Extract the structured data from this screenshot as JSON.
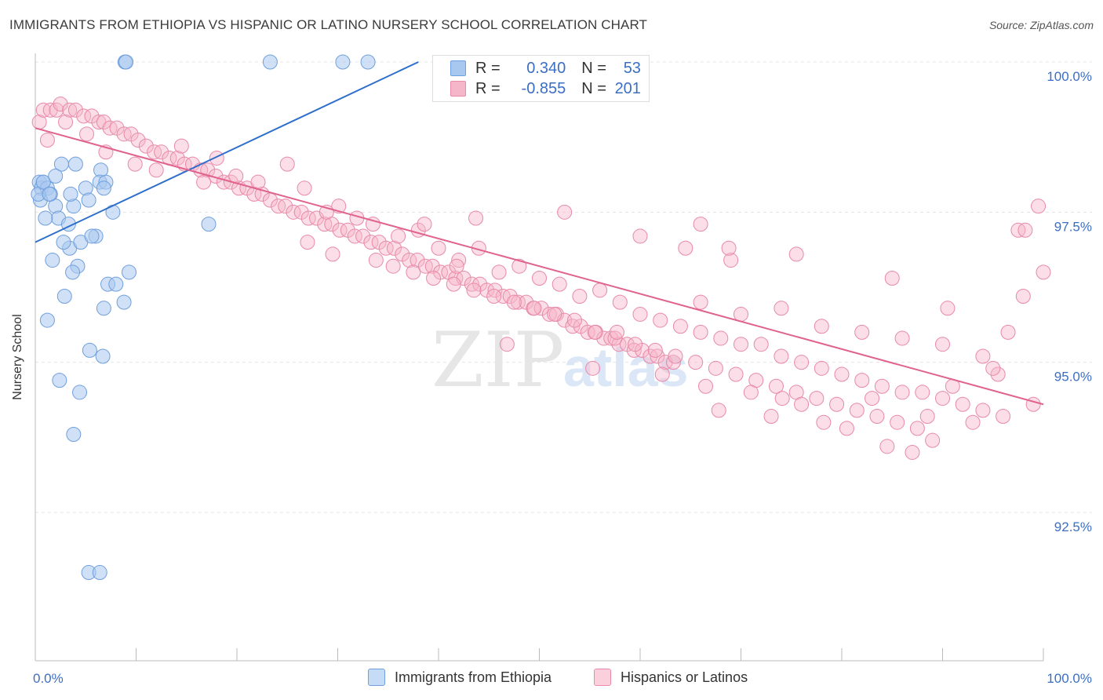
{
  "title": "IMMIGRANTS FROM ETHIOPIA VS HISPANIC OR LATINO NURSERY SCHOOL CORRELATION CHART",
  "source": "Source: ZipAtlas.com",
  "watermark": {
    "zip": "ZIP",
    "atlas": "atlas"
  },
  "legend_top": {
    "rows": [
      {
        "r_label": "R =",
        "r_value": "0.340",
        "n_label": "N =",
        "n_value": "53"
      },
      {
        "r_label": "R =",
        "r_value": "-0.855",
        "n_label": "N =",
        "n_value": "201"
      }
    ]
  },
  "colors": {
    "blue_fill": "#a9c8f0",
    "blue_stroke": "#6f9fdc",
    "blue_line": "#2f6fcc",
    "pink_fill": "#f6b6c9",
    "pink_stroke": "#e889a8",
    "pink_line": "#e0628e",
    "axis_text": "#3b6fc4",
    "grid": "#e4e4e4"
  },
  "chart_data": {
    "type": "scatter",
    "title": "IMMIGRANTS FROM ETHIOPIA VS HISPANIC OR LATINO NURSERY SCHOOL CORRELATION CHART",
    "xlabel": "",
    "ylabel": "Nursery School",
    "xlim": [
      0,
      100
    ],
    "ylim": [
      90.0,
      100.5
    ],
    "x_tick_labels": [
      "0.0%",
      "100.0%"
    ],
    "y_ticks": [
      92.5,
      95.0,
      97.5,
      100.0
    ],
    "y_tick_labels": [
      "92.5%",
      "95.0%",
      "97.5%",
      "100.0%"
    ],
    "grid": true,
    "legend": "top-center",
    "series": [
      {
        "name": "Immigrants from Ethiopia",
        "color": "#a9c8f0",
        "trend": {
          "x": [
            0,
            38
          ],
          "y": [
            97.0,
            100.0
          ]
        },
        "points": [
          [
            8.9,
            100.0
          ],
          [
            9.0,
            100.0
          ],
          [
            23.3,
            100.0
          ],
          [
            30.5,
            100.0
          ],
          [
            33.0,
            100.0
          ],
          [
            2.6,
            98.3
          ],
          [
            4.0,
            98.3
          ],
          [
            6.5,
            98.2
          ],
          [
            0.4,
            98.0
          ],
          [
            0.6,
            97.9
          ],
          [
            0.8,
            98.0
          ],
          [
            6.4,
            98.0
          ],
          [
            7.0,
            98.0
          ],
          [
            1.2,
            97.9
          ],
          [
            1.5,
            97.8
          ],
          [
            3.8,
            97.6
          ],
          [
            5.0,
            97.9
          ],
          [
            5.3,
            97.7
          ],
          [
            6.8,
            97.9
          ],
          [
            2.0,
            97.6
          ],
          [
            0.5,
            97.7
          ],
          [
            2.3,
            97.4
          ],
          [
            1.0,
            97.4
          ],
          [
            3.3,
            97.3
          ],
          [
            7.7,
            97.5
          ],
          [
            0.3,
            97.8
          ],
          [
            1.7,
            96.7
          ],
          [
            3.4,
            96.9
          ],
          [
            4.5,
            97.0
          ],
          [
            6.0,
            97.1
          ],
          [
            17.2,
            97.3
          ],
          [
            2.8,
            97.0
          ],
          [
            4.2,
            96.6
          ],
          [
            7.2,
            96.3
          ],
          [
            2.9,
            96.1
          ],
          [
            1.2,
            95.7
          ],
          [
            3.7,
            96.5
          ],
          [
            8.8,
            96.0
          ],
          [
            6.8,
            95.9
          ],
          [
            9.3,
            96.5
          ],
          [
            8.0,
            96.3
          ],
          [
            5.4,
            95.2
          ],
          [
            6.7,
            95.1
          ],
          [
            2.4,
            94.7
          ],
          [
            4.4,
            94.5
          ],
          [
            3.8,
            93.8
          ],
          [
            5.3,
            91.5
          ],
          [
            6.4,
            91.5
          ],
          [
            0.8,
            98.0
          ],
          [
            5.6,
            97.1
          ],
          [
            2.0,
            98.1
          ],
          [
            3.5,
            97.8
          ],
          [
            1.4,
            97.8
          ]
        ]
      },
      {
        "name": "Hispanics or Latinos",
        "color": "#f6b6c9",
        "trend": {
          "x": [
            0,
            100
          ],
          "y": [
            98.9,
            94.3
          ]
        },
        "points": [
          [
            0.4,
            99.0
          ],
          [
            0.8,
            99.2
          ],
          [
            1.5,
            99.2
          ],
          [
            2.1,
            99.2
          ],
          [
            2.5,
            99.3
          ],
          [
            3.4,
            99.2
          ],
          [
            4.0,
            99.2
          ],
          [
            4.8,
            99.1
          ],
          [
            5.6,
            99.1
          ],
          [
            6.3,
            99.0
          ],
          [
            6.8,
            99.0
          ],
          [
            7.4,
            98.9
          ],
          [
            8.1,
            98.9
          ],
          [
            8.8,
            98.8
          ],
          [
            9.5,
            98.8
          ],
          [
            10.2,
            98.7
          ],
          [
            11.0,
            98.6
          ],
          [
            11.8,
            98.5
          ],
          [
            12.5,
            98.5
          ],
          [
            13.3,
            98.4
          ],
          [
            14.1,
            98.4
          ],
          [
            14.8,
            98.3
          ],
          [
            15.6,
            98.3
          ],
          [
            16.4,
            98.2
          ],
          [
            17.1,
            98.2
          ],
          [
            17.9,
            98.1
          ],
          [
            18.7,
            98.0
          ],
          [
            19.4,
            98.0
          ],
          [
            20.2,
            97.9
          ],
          [
            21.0,
            97.9
          ],
          [
            21.7,
            97.8
          ],
          [
            22.5,
            97.8
          ],
          [
            23.3,
            97.7
          ],
          [
            24.1,
            97.6
          ],
          [
            24.8,
            97.6
          ],
          [
            25.6,
            97.5
          ],
          [
            26.4,
            97.5
          ],
          [
            27.1,
            97.4
          ],
          [
            27.9,
            97.4
          ],
          [
            28.7,
            97.3
          ],
          [
            29.4,
            97.3
          ],
          [
            30.2,
            97.2
          ],
          [
            31.0,
            97.2
          ],
          [
            31.7,
            97.1
          ],
          [
            32.5,
            97.1
          ],
          [
            33.3,
            97.0
          ],
          [
            34.1,
            97.0
          ],
          [
            34.8,
            96.9
          ],
          [
            35.6,
            96.9
          ],
          [
            36.4,
            96.8
          ],
          [
            37.1,
            96.7
          ],
          [
            37.9,
            96.7
          ],
          [
            38.7,
            96.6
          ],
          [
            39.4,
            96.6
          ],
          [
            40.2,
            96.5
          ],
          [
            41.0,
            96.5
          ],
          [
            41.7,
            96.4
          ],
          [
            42.5,
            96.4
          ],
          [
            43.3,
            96.3
          ],
          [
            44.1,
            96.3
          ],
          [
            44.8,
            96.2
          ],
          [
            45.6,
            96.2
          ],
          [
            46.4,
            96.1
          ],
          [
            47.1,
            96.1
          ],
          [
            47.9,
            96.0
          ],
          [
            48.7,
            96.0
          ],
          [
            49.4,
            95.9
          ],
          [
            50.2,
            95.9
          ],
          [
            51.0,
            95.8
          ],
          [
            51.7,
            95.8
          ],
          [
            52.5,
            95.7
          ],
          [
            53.3,
            95.6
          ],
          [
            54.1,
            95.6
          ],
          [
            54.8,
            95.5
          ],
          [
            55.6,
            95.5
          ],
          [
            56.4,
            95.4
          ],
          [
            57.1,
            95.4
          ],
          [
            57.9,
            95.3
          ],
          [
            58.7,
            95.3
          ],
          [
            59.4,
            95.2
          ],
          [
            60.2,
            95.2
          ],
          [
            61.0,
            95.1
          ],
          [
            61.7,
            95.1
          ],
          [
            62.5,
            95.0
          ],
          [
            63.3,
            95.0
          ],
          [
            1.2,
            98.7
          ],
          [
            3.0,
            99.0
          ],
          [
            5.1,
            98.8
          ],
          [
            7.0,
            98.5
          ],
          [
            9.9,
            98.3
          ],
          [
            12.0,
            98.2
          ],
          [
            14.5,
            98.6
          ],
          [
            16.7,
            98.0
          ],
          [
            18.0,
            98.4
          ],
          [
            19.9,
            98.1
          ],
          [
            22.1,
            98.0
          ],
          [
            25.0,
            98.3
          ],
          [
            26.7,
            97.9
          ],
          [
            28.9,
            97.5
          ],
          [
            30.1,
            97.6
          ],
          [
            31.9,
            97.4
          ],
          [
            33.5,
            97.3
          ],
          [
            36.0,
            97.1
          ],
          [
            38.0,
            97.2
          ],
          [
            40.0,
            96.9
          ],
          [
            42.0,
            96.7
          ],
          [
            44.0,
            96.9
          ],
          [
            46.0,
            96.5
          ],
          [
            48.0,
            96.6
          ],
          [
            50.0,
            96.4
          ],
          [
            52.0,
            96.3
          ],
          [
            54.0,
            96.1
          ],
          [
            56.0,
            96.2
          ],
          [
            58.0,
            96.0
          ],
          [
            60.0,
            95.8
          ],
          [
            62.0,
            95.7
          ],
          [
            64.0,
            95.6
          ],
          [
            66.0,
            95.5
          ],
          [
            68.0,
            95.4
          ],
          [
            70.0,
            95.3
          ],
          [
            72.0,
            95.3
          ],
          [
            74.0,
            95.1
          ],
          [
            76.0,
            95.0
          ],
          [
            78.0,
            94.9
          ],
          [
            80.0,
            94.8
          ],
          [
            82.0,
            94.7
          ],
          [
            84.0,
            94.6
          ],
          [
            86.0,
            94.5
          ],
          [
            88.0,
            94.5
          ],
          [
            90.0,
            94.4
          ],
          [
            92.0,
            94.3
          ],
          [
            94.0,
            94.2
          ],
          [
            96.0,
            94.1
          ],
          [
            27.0,
            97.0
          ],
          [
            29.5,
            96.8
          ],
          [
            33.8,
            96.7
          ],
          [
            35.5,
            96.6
          ],
          [
            37.5,
            96.5
          ],
          [
            39.5,
            96.4
          ],
          [
            41.5,
            96.3
          ],
          [
            43.5,
            96.2
          ],
          [
            45.5,
            96.1
          ],
          [
            47.5,
            96.0
          ],
          [
            49.5,
            95.9
          ],
          [
            51.5,
            95.8
          ],
          [
            53.5,
            95.7
          ],
          [
            55.5,
            95.5
          ],
          [
            57.5,
            95.4
          ],
          [
            59.5,
            95.3
          ],
          [
            61.5,
            95.2
          ],
          [
            63.5,
            95.1
          ],
          [
            65.5,
            95.0
          ],
          [
            67.5,
            94.9
          ],
          [
            69.5,
            94.8
          ],
          [
            71.5,
            94.7
          ],
          [
            73.5,
            94.6
          ],
          [
            75.5,
            94.5
          ],
          [
            77.5,
            94.4
          ],
          [
            79.5,
            94.3
          ],
          [
            81.5,
            94.2
          ],
          [
            83.5,
            94.1
          ],
          [
            85.5,
            94.0
          ],
          [
            87.5,
            93.9
          ],
          [
            66.0,
            96.0
          ],
          [
            70.0,
            95.8
          ],
          [
            74.0,
            95.9
          ],
          [
            78.0,
            95.6
          ],
          [
            82.0,
            95.5
          ],
          [
            86.0,
            95.4
          ],
          [
            90.0,
            95.3
          ],
          [
            94.0,
            95.1
          ],
          [
            98.0,
            96.1
          ],
          [
            97.5,
            97.2
          ],
          [
            98.2,
            97.2
          ],
          [
            100.0,
            96.5
          ],
          [
            73.0,
            94.1
          ],
          [
            80.5,
            93.9
          ],
          [
            87.0,
            93.5
          ],
          [
            91.0,
            94.6
          ],
          [
            95.5,
            94.8
          ],
          [
            99.0,
            94.3
          ],
          [
            64.5,
            96.9
          ],
          [
            69.0,
            96.7
          ],
          [
            75.5,
            96.8
          ],
          [
            85.0,
            96.4
          ],
          [
            90.5,
            95.9
          ],
          [
            96.5,
            95.5
          ],
          [
            66.5,
            94.6
          ],
          [
            71.0,
            94.5
          ],
          [
            76.0,
            94.3
          ],
          [
            83.0,
            94.4
          ],
          [
            88.5,
            94.1
          ],
          [
            93.0,
            94.0
          ],
          [
            41.8,
            96.6
          ],
          [
            38.6,
            97.3
          ],
          [
            43.7,
            97.4
          ],
          [
            52.5,
            97.5
          ],
          [
            60.0,
            97.1
          ],
          [
            66.0,
            97.3
          ],
          [
            68.8,
            96.9
          ],
          [
            57.7,
            95.5
          ],
          [
            46.8,
            95.3
          ],
          [
            55.3,
            94.9
          ],
          [
            62.2,
            94.8
          ],
          [
            67.8,
            94.2
          ],
          [
            74.1,
            94.4
          ],
          [
            78.2,
            94.0
          ],
          [
            84.5,
            93.6
          ],
          [
            89.0,
            93.7
          ],
          [
            95.0,
            94.9
          ],
          [
            99.5,
            97.6
          ]
        ]
      }
    ]
  },
  "bottom_legend": {
    "items": [
      {
        "label": "Immigrants from Ethiopia"
      },
      {
        "label": "Hispanics or Latinos"
      }
    ]
  }
}
